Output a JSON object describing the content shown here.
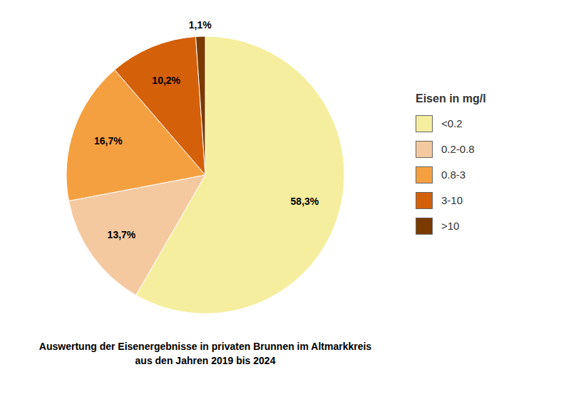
{
  "chart_data": {
    "type": "pie",
    "title": "Auswertung der Eisenergebnisse in privaten Brunnen im Altmarkkreis",
    "subtitle": "aus den Jahren 2019 bis 2024",
    "categories": [
      "<0.2",
      "0.2-0.8",
      "0.8-3",
      "3-10",
      ">10"
    ],
    "values": [
      58.3,
      13.7,
      16.7,
      10.2,
      1.1
    ],
    "value_labels": [
      "58,3%",
      "13,7%",
      "16,7%",
      "10,2%",
      "1,1%"
    ],
    "colors": [
      "#F5EE9E",
      "#F5C9A0",
      "#F5A040",
      "#D4600A",
      "#7B3A00"
    ],
    "legend_title": "Eisen in mg/l",
    "legend": "right",
    "data_labels": true
  }
}
